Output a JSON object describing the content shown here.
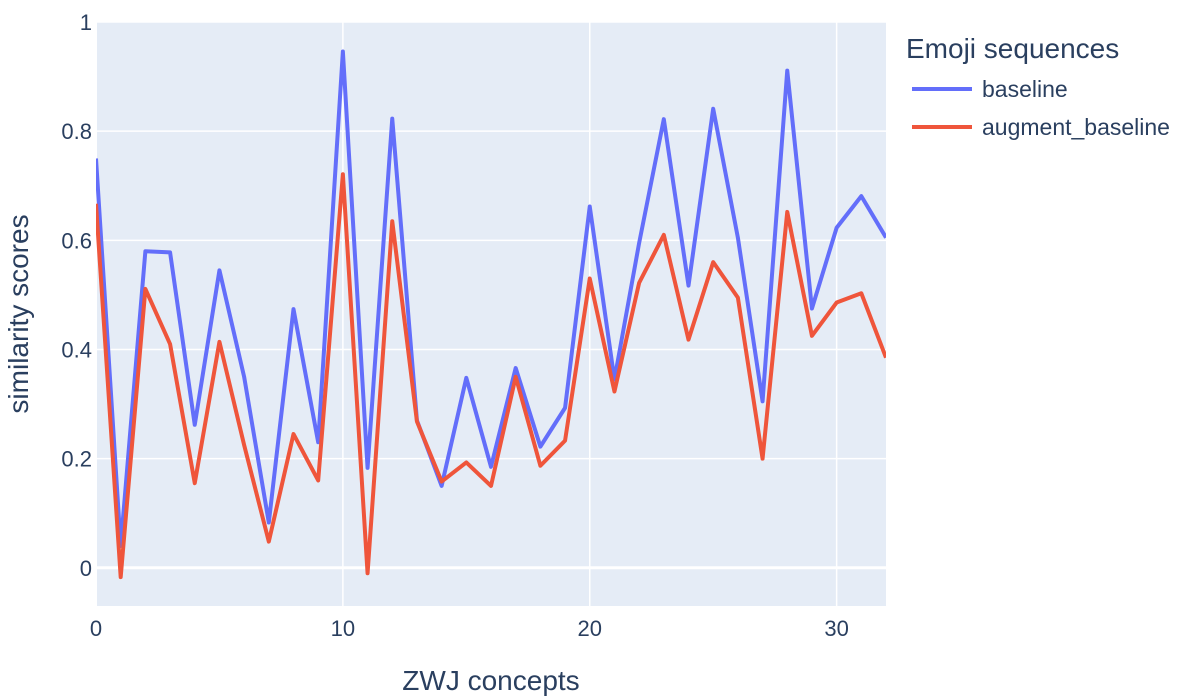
{
  "chart_data": {
    "type": "line",
    "title": "",
    "xlabel": "ZWJ concepts",
    "ylabel": "similarity scores",
    "xlim": [
      0,
      32
    ],
    "ylim": [
      -0.07,
      1
    ],
    "x_ticks": [
      0,
      10,
      20,
      30
    ],
    "y_ticks": [
      0,
      0.2,
      0.4,
      0.6,
      0.8,
      1
    ],
    "y_tick_labels": [
      "0",
      "0.2",
      "0.4",
      "0.6",
      "0.8",
      "1"
    ],
    "grid": true,
    "legend": {
      "title": "Emoji sequences",
      "placement": "right"
    },
    "x": [
      0,
      1,
      2,
      3,
      4,
      5,
      6,
      7,
      8,
      9,
      10,
      11,
      12,
      13,
      14,
      15,
      16,
      17,
      18,
      19,
      20,
      21,
      22,
      23,
      24,
      25,
      26,
      27,
      28,
      29,
      30,
      31,
      32
    ],
    "series": [
      {
        "name": "baseline",
        "color": "#636efa",
        "values": [
          0.75,
          0.04,
          0.58,
          0.578,
          0.262,
          0.545,
          0.35,
          0.083,
          0.474,
          0.23,
          0.946,
          0.183,
          0.823,
          0.27,
          0.15,
          0.348,
          0.185,
          0.366,
          0.222,
          0.293,
          0.662,
          0.345,
          0.595,
          0.822,
          0.517,
          0.841,
          0.605,
          0.305,
          0.911,
          0.475,
          0.623,
          0.681,
          0.605
        ]
      },
      {
        "name": "augment_baseline",
        "color": "#ef553b",
        "values": [
          0.667,
          -0.017,
          0.511,
          0.41,
          0.155,
          0.414,
          0.225,
          0.048,
          0.245,
          0.16,
          0.721,
          -0.01,
          0.635,
          0.268,
          0.158,
          0.193,
          0.15,
          0.35,
          0.187,
          0.233,
          0.53,
          0.323,
          0.522,
          0.61,
          0.418,
          0.56,
          0.495,
          0.2,
          0.652,
          0.425,
          0.486,
          0.503,
          0.385
        ]
      }
    ]
  },
  "colors": {
    "plot_background": "#e5ecf6",
    "grid": "#ffffff",
    "text": "#2a3f5f"
  }
}
